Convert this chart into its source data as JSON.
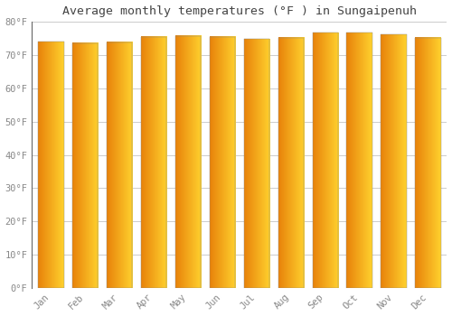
{
  "title": "Average monthly temperatures (°F ) in Sungaipenuh",
  "months": [
    "Jan",
    "Feb",
    "Mar",
    "Apr",
    "May",
    "Jun",
    "Jul",
    "Aug",
    "Sep",
    "Oct",
    "Nov",
    "Dec"
  ],
  "values": [
    73.9,
    73.6,
    73.8,
    75.4,
    75.6,
    75.3,
    74.7,
    75.1,
    76.6,
    76.6,
    76.1,
    75.2
  ],
  "bar_color_left": "#E8820A",
  "bar_color_right": "#FFCC30",
  "bar_outline": "#888888",
  "background_color": "#FFFFFF",
  "grid_color": "#CCCCCC",
  "ylim": [
    0,
    80
  ],
  "yticks": [
    0,
    10,
    20,
    30,
    40,
    50,
    60,
    70,
    80
  ],
  "ytick_labels": [
    "0°F",
    "10°F",
    "20°F",
    "30°F",
    "40°F",
    "50°F",
    "60°F",
    "70°F",
    "80°F"
  ],
  "title_fontsize": 9.5,
  "tick_fontsize": 7.5,
  "title_color": "#444444",
  "tick_color": "#888888"
}
